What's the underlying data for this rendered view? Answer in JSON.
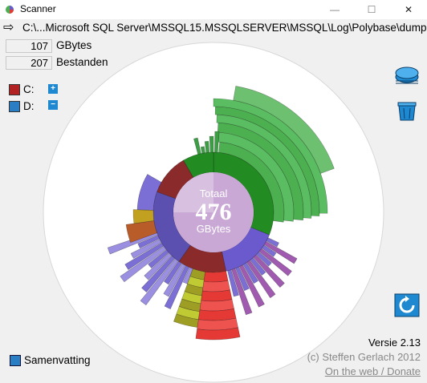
{
  "window": {
    "title": "Scanner",
    "minimize": "—",
    "maximize": "☐",
    "close": "✕"
  },
  "path": {
    "arrow": "⇨",
    "text": "C:\\...Microsoft SQL Server\\MSSQL15.MSSQLSERVER\\MSSQL\\Log\\Polybase\\dump"
  },
  "stats": {
    "size_value": "107",
    "size_unit": "GBytes",
    "files_value": "207",
    "files_label": "Bestanden"
  },
  "drives": [
    {
      "label": "C:",
      "color": "#b22222",
      "button": "+"
    },
    {
      "label": "D:",
      "color": "#2a7fc4",
      "button": "−"
    }
  ],
  "center": {
    "label_top": "Totaal",
    "value": "476",
    "label_bottom": "GBytes"
  },
  "summary": {
    "label": "Samenvatting"
  },
  "footer": {
    "version": "Versie 2.13",
    "copyright": "(c) Steffen Gerlach 2012",
    "link": "On the web / Donate"
  },
  "colors": {
    "green": "#4caf50",
    "dark_green": "#228b22",
    "purple": "#6a5acd",
    "red": "#e53935",
    "olive": "#9e9d24",
    "center": "#c9a8d6"
  }
}
